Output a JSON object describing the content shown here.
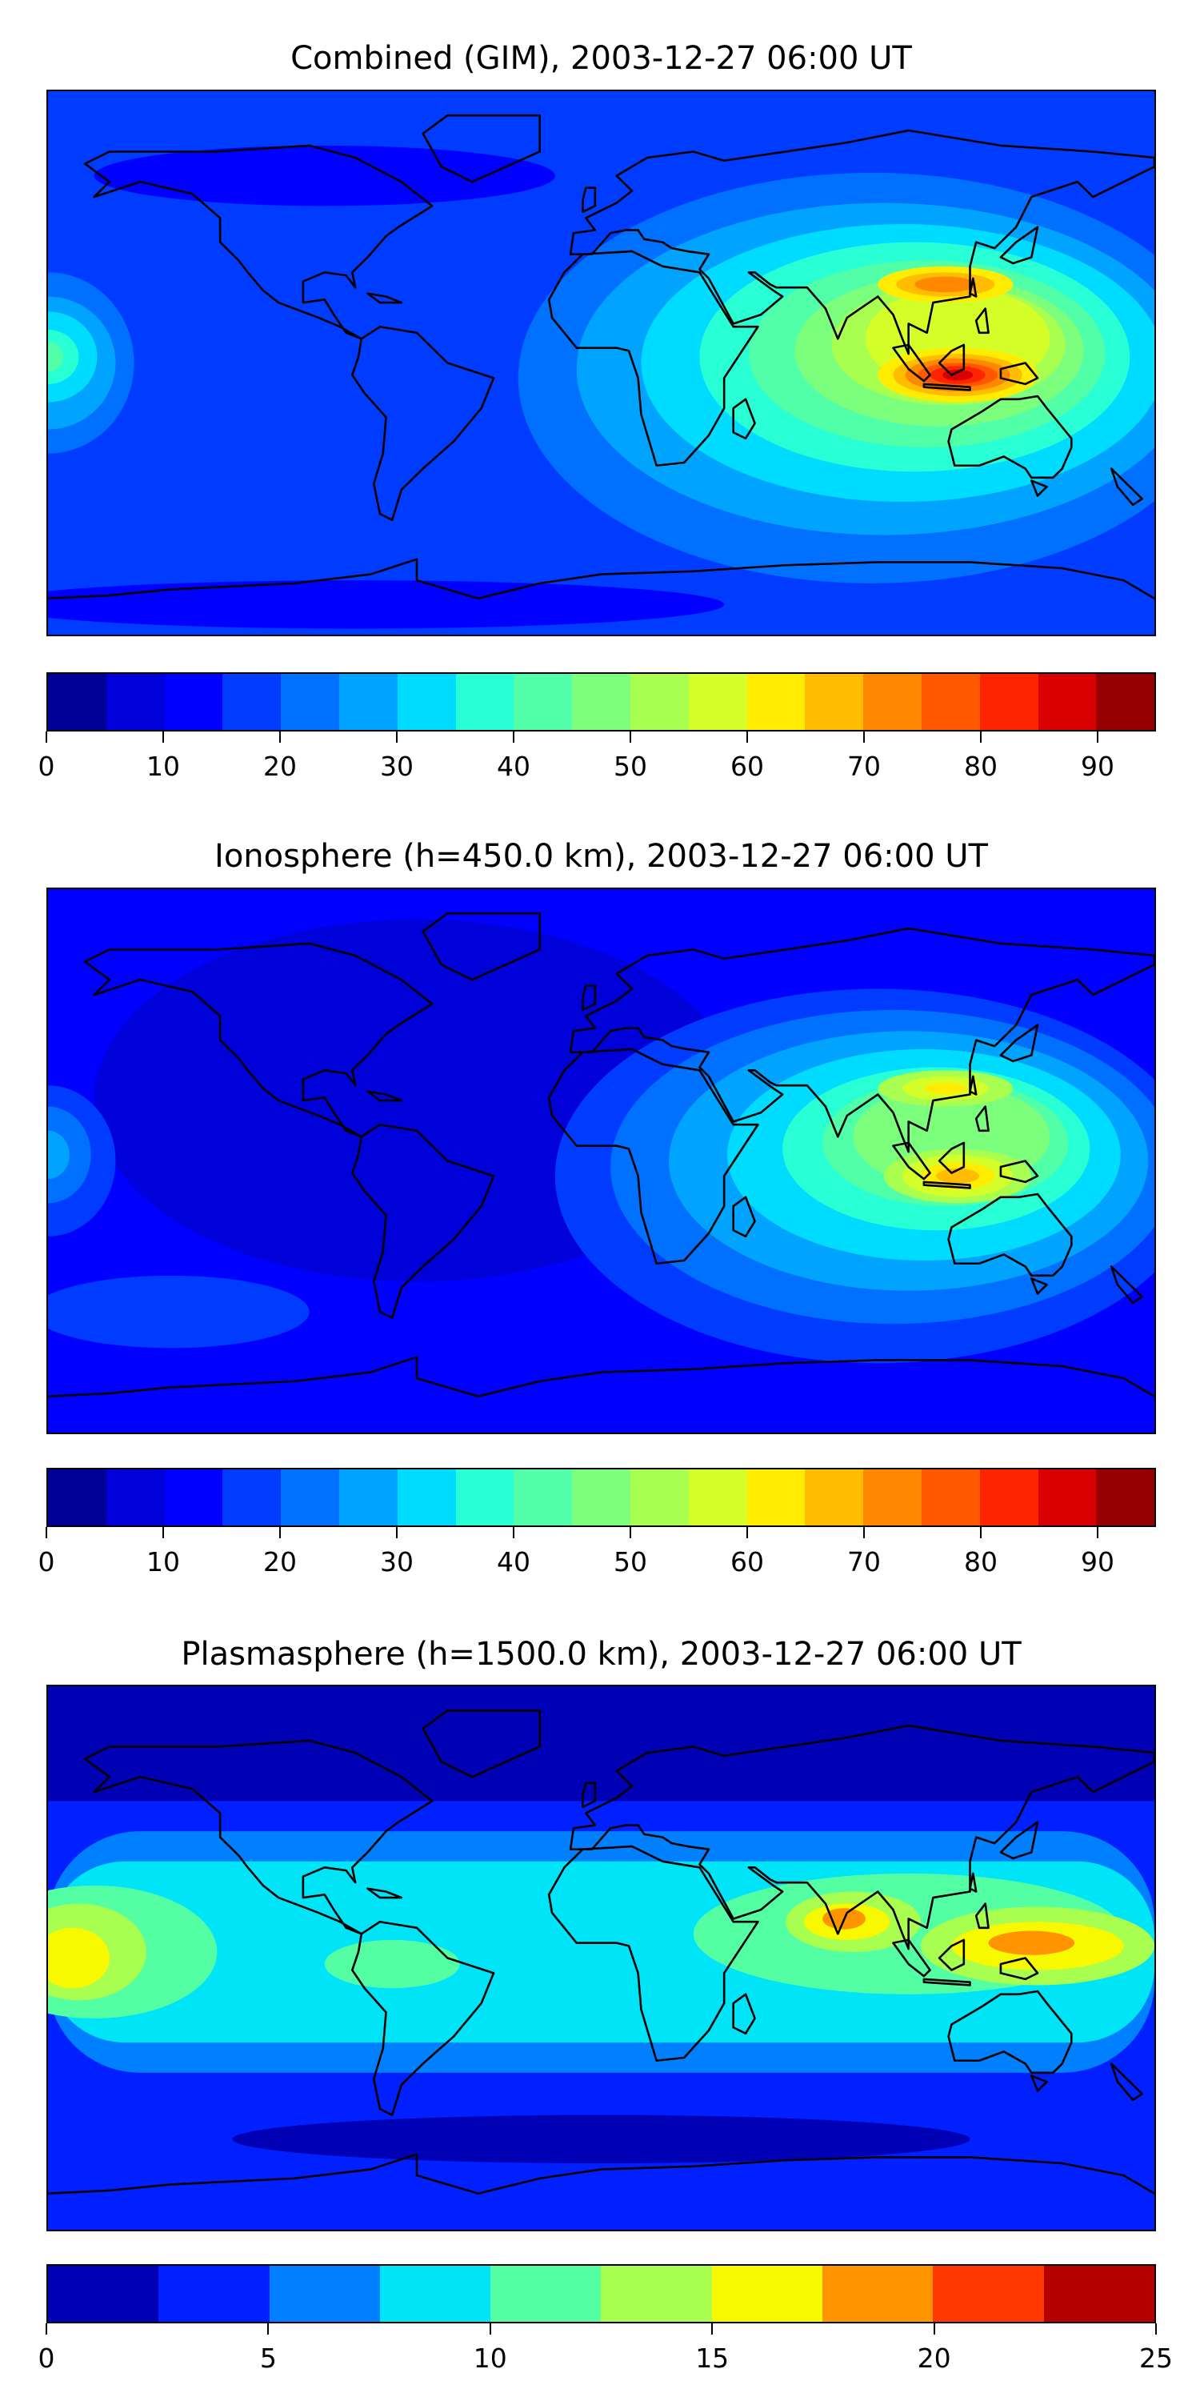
{
  "chart_data": [
    {
      "type": "heatmap",
      "title": "Combined (GIM), 2003-12-27 06:00 UT",
      "xlabel": "",
      "ylabel": "",
      "colorbar": {
        "levels": [
          0,
          5,
          10,
          15,
          20,
          25,
          30,
          35,
          40,
          45,
          50,
          55,
          60,
          65,
          70,
          75,
          80,
          85,
          90,
          95
        ],
        "colors": [
          "#000096",
          "#0000d8",
          "#0000ff",
          "#003cff",
          "#0070ff",
          "#00a4ff",
          "#00dcff",
          "#28ffd4",
          "#50ffa8",
          "#7cff7c",
          "#a8ff50",
          "#d4ff28",
          "#ffec00",
          "#ffbc00",
          "#ff8800",
          "#ff5800",
          "#ff2400",
          "#d80000",
          "#960000"
        ],
        "ticks": [
          "0",
          "10",
          "20",
          "30",
          "40",
          "50",
          "60",
          "70",
          "80",
          "90"
        ],
        "tick_values": [
          0,
          10,
          20,
          30,
          40,
          50,
          60,
          70,
          80,
          90
        ],
        "range": [
          0,
          95
        ]
      },
      "peak_value_approx": 90
    },
    {
      "type": "heatmap",
      "title": "Ionosphere  (h=450.0 km), 2003-12-27 06:00 UT",
      "xlabel": "",
      "ylabel": "",
      "colorbar": {
        "levels": [
          0,
          5,
          10,
          15,
          20,
          25,
          30,
          35,
          40,
          45,
          50,
          55,
          60,
          65,
          70,
          75,
          80,
          85,
          90,
          95
        ],
        "colors": [
          "#000096",
          "#0000d8",
          "#0000ff",
          "#003cff",
          "#0070ff",
          "#00a4ff",
          "#00dcff",
          "#28ffd4",
          "#50ffa8",
          "#7cff7c",
          "#a8ff50",
          "#d4ff28",
          "#ffec00",
          "#ffbc00",
          "#ff8800",
          "#ff5800",
          "#ff2400",
          "#d80000",
          "#960000"
        ],
        "ticks": [
          "0",
          "10",
          "20",
          "30",
          "40",
          "50",
          "60",
          "70",
          "80",
          "90"
        ],
        "tick_values": [
          0,
          10,
          20,
          30,
          40,
          50,
          60,
          70,
          80,
          90
        ],
        "range": [
          0,
          95
        ]
      },
      "peak_value_approx": 70
    },
    {
      "type": "heatmap",
      "title": "Plasmasphere (h=1500.0 km), 2003-12-27 06:00 UT",
      "xlabel": "",
      "ylabel": "",
      "colorbar": {
        "levels": [
          0,
          2.5,
          5,
          7.5,
          10,
          12.5,
          15,
          17.5,
          20,
          22.5,
          25
        ],
        "colors": [
          "#0000b4",
          "#0020ff",
          "#0080ff",
          "#00e4f8",
          "#54ffa4",
          "#a8ff50",
          "#f8f800",
          "#ff9400",
          "#ff3800",
          "#b40000"
        ],
        "ticks": [
          "0",
          "5",
          "10",
          "15",
          "20",
          "25"
        ],
        "tick_values": [
          0,
          5,
          10,
          15,
          20,
          25
        ],
        "range": [
          0,
          25
        ]
      },
      "peak_value_approx": 20
    }
  ]
}
